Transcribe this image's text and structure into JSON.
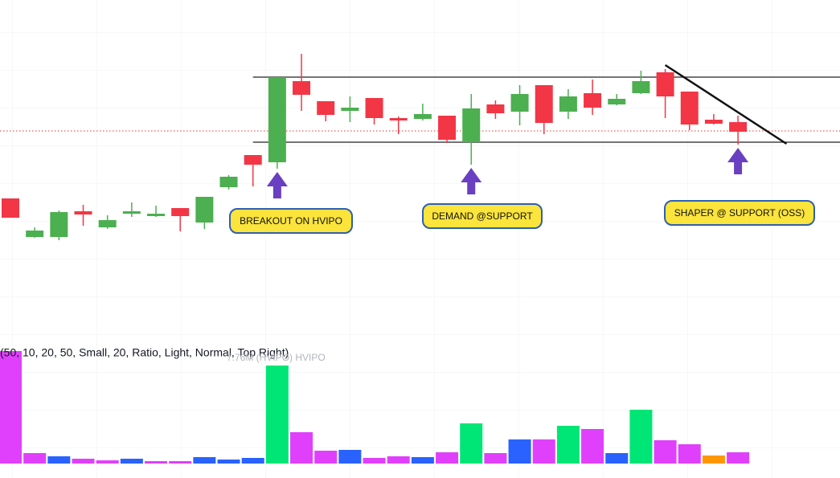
{
  "chart_data": [
    {
      "type": "candlestick",
      "categories": [
        null,
        null,
        null,
        null,
        null,
        null,
        null,
        null,
        null,
        null,
        null,
        null,
        null,
        null,
        null,
        null,
        null,
        null,
        null,
        null,
        null,
        null,
        null,
        null,
        null,
        null,
        null,
        null,
        null,
        null,
        null
      ],
      "open": [
        348,
        300,
        300,
        332,
        312,
        329,
        326,
        336,
        318,
        362,
        402,
        393,
        494,
        469,
        457,
        473,
        448,
        447,
        451,
        418,
        465,
        456,
        489,
        456,
        479,
        465,
        479,
        505,
        481,
        446,
        443
      ],
      "high": [
        348,
        312,
        333,
        340,
        327,
        343,
        339,
        336,
        350,
        377,
        402,
        499,
        528,
        469,
        475,
        473,
        450,
        466,
        451,
        478,
        470,
        489,
        489,
        484,
        496,
        478,
        507,
        509,
        481,
        453,
        451
      ],
      "low": [
        324,
        299,
        296,
        314,
        310,
        325,
        325,
        307,
        310,
        359,
        363,
        385,
        457,
        444,
        443,
        440,
        428,
        445,
        417,
        390,
        447,
        439,
        428,
        447,
        452,
        464,
        478,
        448,
        433,
        440,
        415
      ],
      "close": [
        324,
        308,
        331,
        328,
        321,
        332,
        329,
        326,
        350,
        375,
        390,
        499,
        477,
        452,
        461,
        448,
        445,
        453,
        421,
        460,
        454,
        478,
        442,
        475,
        461,
        472,
        494,
        475,
        440,
        441,
        431
      ],
      "up_color": "#4caf50",
      "down_color": "#f23645",
      "ylim": [
        0,
        595
      ],
      "levels": [
        {
          "value": 499,
          "start": 10,
          "color": "#222222"
        },
        {
          "value": 418,
          "start": 10,
          "color": "#222222"
        }
      ],
      "price_line": {
        "value": 432,
        "color": "#e53935"
      },
      "trendline": {
        "x": [
          27,
          32
        ],
        "y": [
          514,
          416
        ],
        "color": "#111111"
      },
      "annotations": [
        {
          "text": "BREAKOUT ON HVIPO",
          "index": 11
        },
        {
          "text": "DEMAND @SUPPORT",
          "index": 19
        },
        {
          "text": "SHAPER @ SUPPORT (OSS)",
          "index": 30
        }
      ],
      "arrow_color": "#6a3fc1"
    },
    {
      "type": "bar",
      "title": "(50, 10, 20, 50, Small, 20, Ratio, Light, Normal, Top Right)",
      "subtitle": "7.76M (HVIPO) HVIPO",
      "values": [
        140,
        13,
        9,
        6,
        4,
        6,
        3,
        3,
        8,
        5,
        7,
        122,
        39,
        16,
        17,
        7,
        9,
        8,
        14,
        50,
        13,
        30,
        30,
        47,
        43,
        13,
        67,
        29,
        24,
        10,
        14
      ],
      "colors": [
        "#e040fb",
        "#e040fb",
        "#2962ff",
        "#e040fb",
        "#e040fb",
        "#2962ff",
        "#e040fb",
        "#e040fb",
        "#2962ff",
        "#2962ff",
        "#2962ff",
        "#00e676",
        "#e040fb",
        "#e040fb",
        "#2962ff",
        "#e040fb",
        "#e040fb",
        "#2962ff",
        "#e040fb",
        "#00e676",
        "#e040fb",
        "#2962ff",
        "#e040fb",
        "#00e676",
        "#e040fb",
        "#2962ff",
        "#00e676",
        "#e040fb",
        "#e040fb",
        "#ff9800",
        "#e040fb"
      ],
      "ylim": [
        0,
        140
      ]
    }
  ]
}
